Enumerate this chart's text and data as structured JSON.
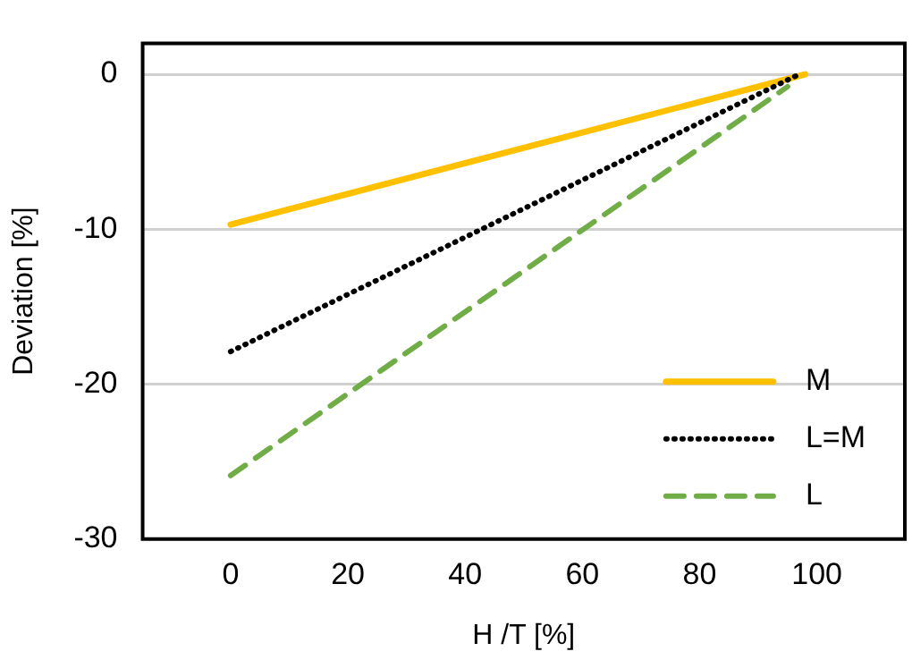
{
  "chart_data": {
    "type": "line",
    "xlabel": "H /T [%]",
    "ylabel": "Deviation [%]",
    "xlim": [
      -15,
      115
    ],
    "xticks": [
      0,
      20,
      40,
      60,
      80,
      100
    ],
    "ylim": [
      -30,
      2
    ],
    "yticks": [
      -30,
      -20,
      -10,
      0
    ],
    "grid": "y",
    "legend": "bottom right",
    "marker": "none",
    "series": [
      {
        "name": "M",
        "color": "#ffc000",
        "x": [
          0,
          98
        ],
        "values": [
          -9.7,
          0
        ],
        "line_style": "solid"
      },
      {
        "name": "L=M",
        "color": "#000000",
        "x": [
          0,
          97
        ],
        "values": [
          -17.9,
          0
        ],
        "line_style": "dotted"
      },
      {
        "name": "L",
        "color": "#70ad47",
        "x": [
          0,
          95
        ],
        "values": [
          -25.9,
          -0.8
        ],
        "line_style": "dashed"
      }
    ]
  }
}
